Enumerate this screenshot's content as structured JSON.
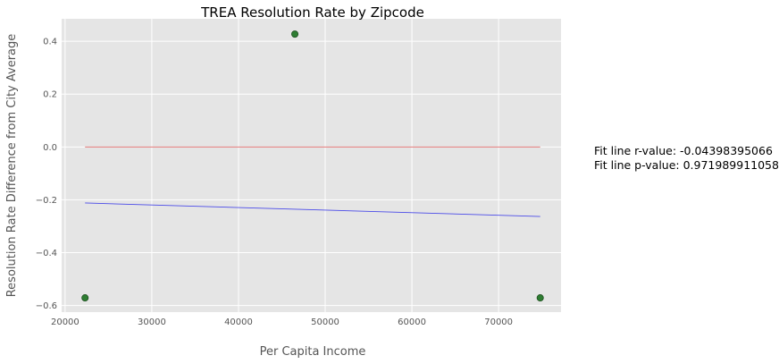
{
  "chart_data": {
    "type": "scatter",
    "title": "TREA Resolution Rate by Zipcode",
    "xlabel": "Per Capita Income",
    "ylabel": "Resolution Rate Difference from City Average",
    "xlim": [
      19600,
      77200
    ],
    "ylim": [
      -0.625,
      0.485
    ],
    "xticks": [
      20000,
      30000,
      40000,
      50000,
      60000,
      70000
    ],
    "yticks": [
      -0.6,
      -0.4,
      -0.2,
      0.0,
      0.2,
      0.4
    ],
    "xtick_labels": [
      "20000",
      "30000",
      "40000",
      "50000",
      "60000",
      "70000"
    ],
    "ytick_labels": [
      "−0.6",
      "−0.4",
      "−0.2",
      "0.0",
      "0.2",
      "0.4"
    ],
    "grid": true,
    "points": [
      {
        "x": 22300,
        "y": -0.571
      },
      {
        "x": 46500,
        "y": 0.427
      },
      {
        "x": 74800,
        "y": -0.571
      }
    ],
    "zero_line": {
      "x": [
        22300,
        74800
      ],
      "y": [
        0.0,
        0.0
      ]
    },
    "fit_line": {
      "x": [
        22300,
        74800
      ],
      "y": [
        -0.212,
        -0.263
      ]
    },
    "colors": {
      "background": "#e5e5e5",
      "grid": "#ffffff",
      "points": "#2e7d32",
      "point_edge": "#1b4d1d",
      "zero_line": "#e06666",
      "fit_line": "#4a4ae8",
      "text": "#555555"
    },
    "annotations": [
      "Fit line r-value: -0.04398395066",
      "Fit line p-value: 0.971989911058"
    ]
  }
}
